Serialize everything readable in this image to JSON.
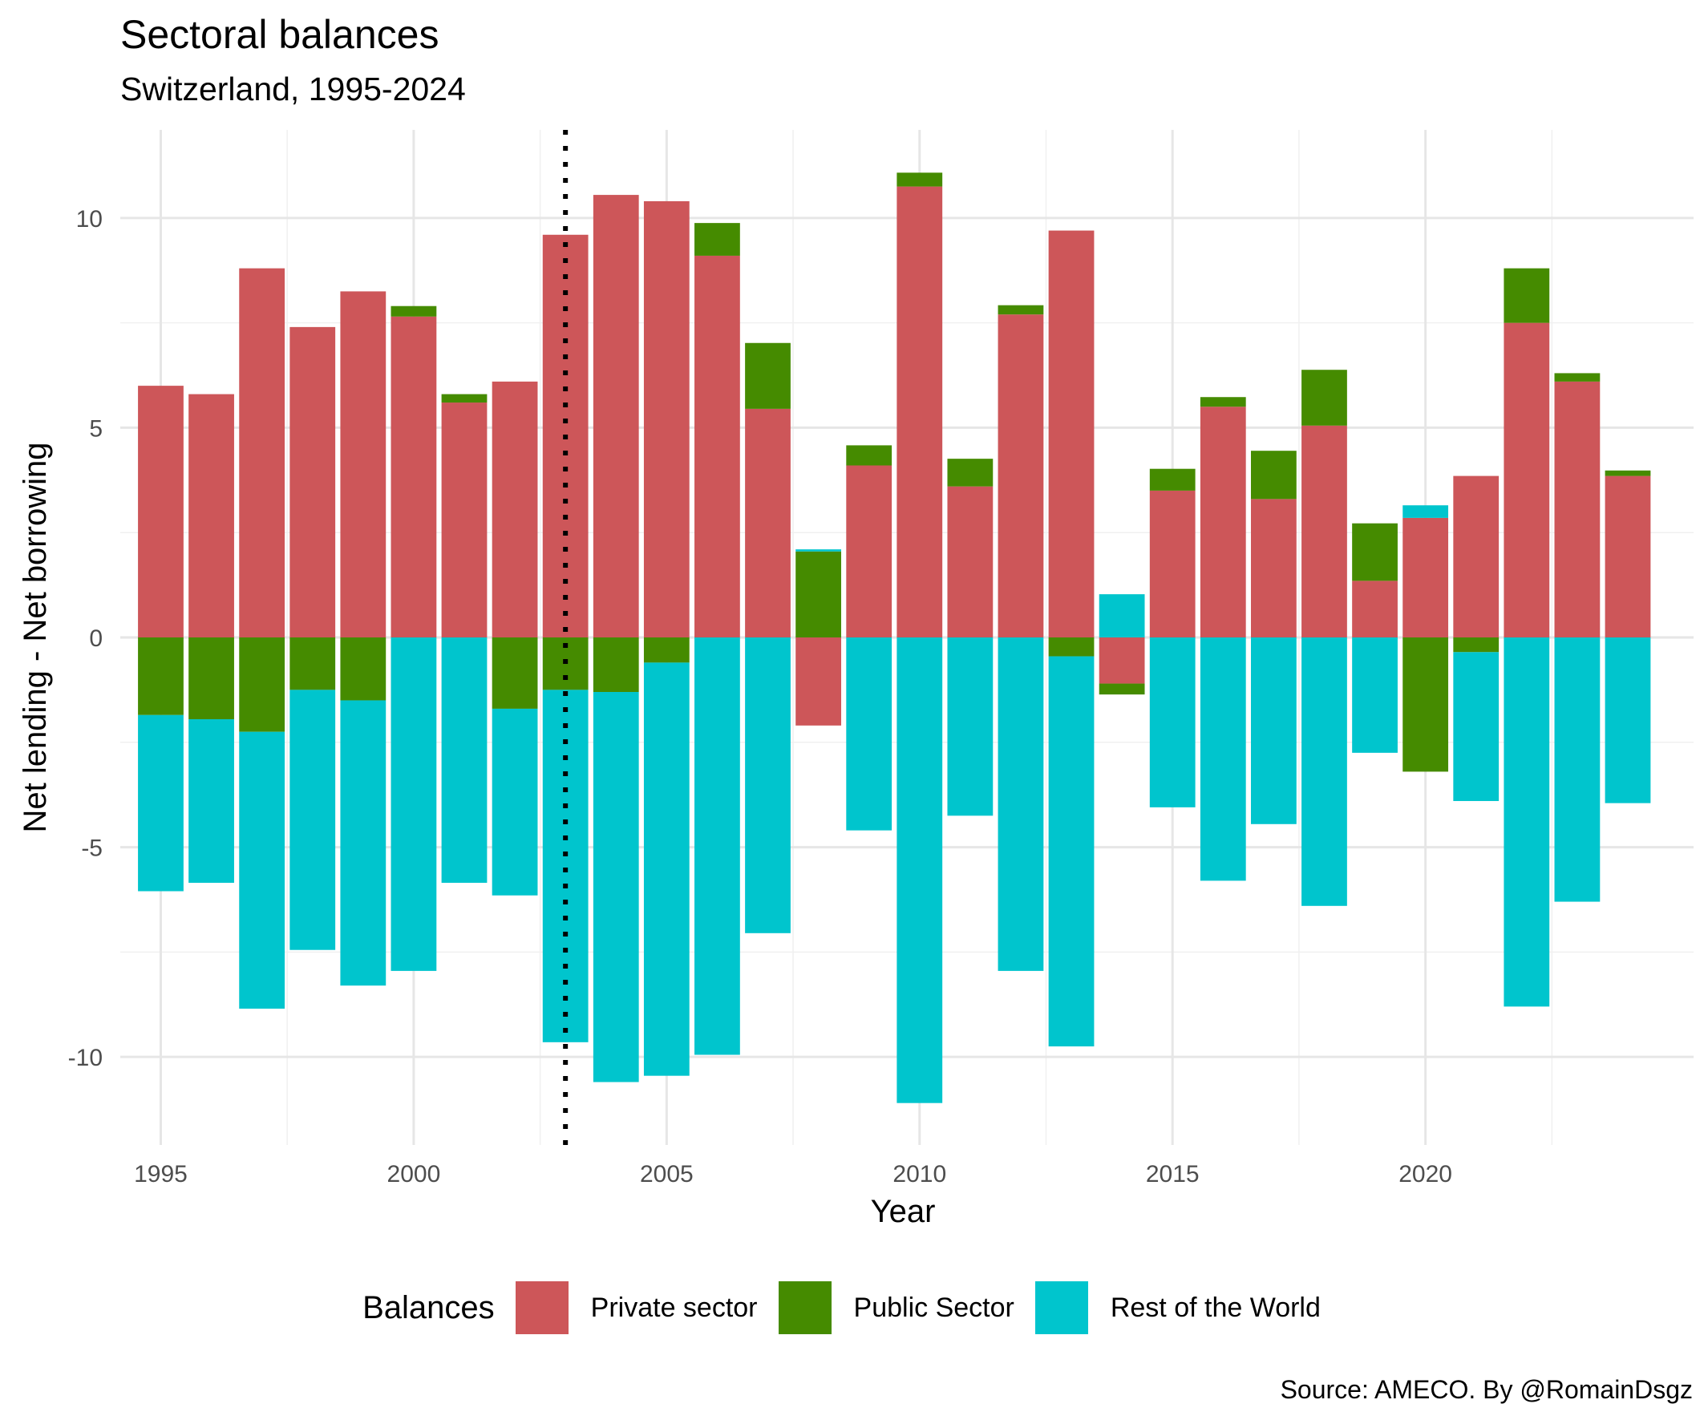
{
  "chart_data": {
    "type": "bar",
    "stacked": true,
    "title": "Sectoral balances",
    "subtitle": "Switzerland, 1995-2024",
    "xlabel": "Year",
    "ylabel": "Net lending - Net borrowing",
    "caption": "Source: AMECO. By @RomainDsgz",
    "legend_title": "Balances",
    "legend_position": "bottom",
    "grid": true,
    "xlim": [
      1994.2,
      2025.3
    ],
    "ylim": [
      -12.1,
      12.1
    ],
    "x_ticks": [
      1995,
      2000,
      2005,
      2010,
      2015,
      2020
    ],
    "y_ticks": [
      -10,
      -5,
      0,
      5,
      10
    ],
    "reference_line": {
      "x": 2003,
      "style": "dotted"
    },
    "x": [
      1995,
      1996,
      1997,
      1998,
      1999,
      2000,
      2001,
      2002,
      2003,
      2004,
      2005,
      2006,
      2007,
      2008,
      2009,
      2010,
      2011,
      2012,
      2013,
      2014,
      2015,
      2016,
      2017,
      2018,
      2019,
      2020,
      2021,
      2022,
      2023,
      2024
    ],
    "series": [
      {
        "name": "Private sector",
        "color": "#cd5659",
        "values": [
          6.0,
          5.8,
          8.8,
          7.4,
          8.25,
          7.65,
          5.6,
          6.1,
          9.6,
          10.55,
          10.4,
          9.1,
          5.45,
          -2.1,
          4.1,
          10.75,
          3.6,
          7.7,
          9.7,
          -1.1,
          3.5,
          5.5,
          3.3,
          5.05,
          1.35,
          2.85,
          3.85,
          7.5,
          6.1,
          3.85
        ]
      },
      {
        "name": "Public Sector",
        "color": "#458b00",
        "values": [
          -1.85,
          -1.95,
          -2.25,
          -1.25,
          -1.5,
          0.25,
          0.2,
          -1.7,
          -1.25,
          -1.3,
          -0.6,
          0.78,
          1.57,
          2.05,
          0.48,
          0.33,
          0.66,
          0.22,
          -0.45,
          -0.26,
          0.52,
          0.23,
          1.15,
          1.33,
          1.37,
          -3.2,
          -0.35,
          1.3,
          0.2,
          0.13
        ]
      },
      {
        "name": "Rest of the World",
        "color": "#00c5cd",
        "values": [
          -4.2,
          -3.9,
          -6.6,
          -6.2,
          -6.8,
          -7.95,
          -5.85,
          -4.45,
          -8.4,
          -9.3,
          -9.85,
          -9.95,
          -7.05,
          0.05,
          -4.6,
          -11.1,
          -4.25,
          -7.95,
          -9.3,
          1.03,
          -4.05,
          -5.8,
          -4.45,
          -6.4,
          -2.75,
          0.3,
          -3.55,
          -8.8,
          -6.3,
          -3.95
        ]
      }
    ]
  }
}
